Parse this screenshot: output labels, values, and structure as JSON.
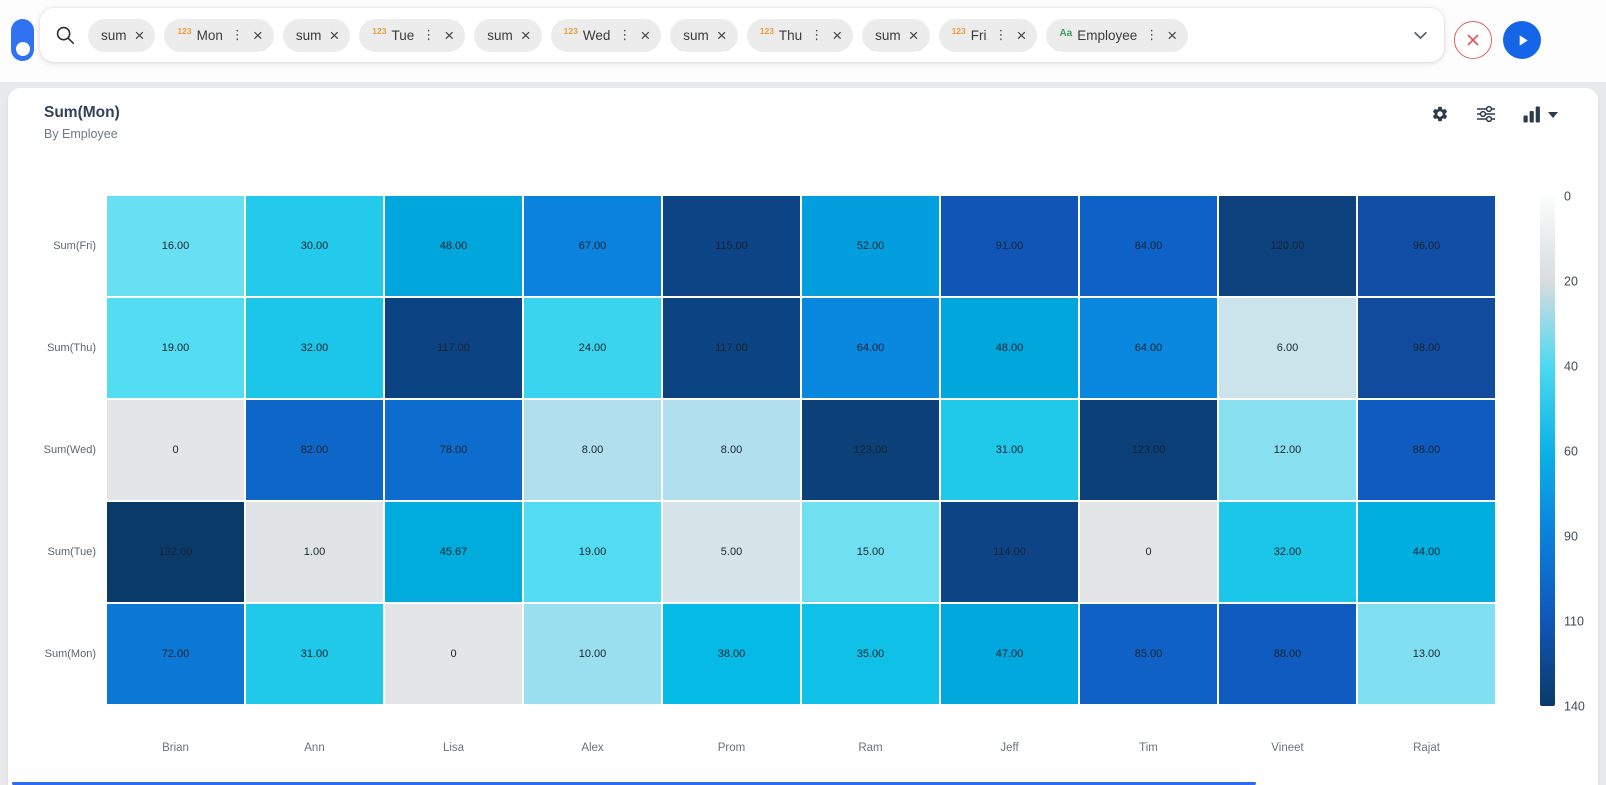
{
  "search": {
    "tokens": [
      {
        "label": "sum",
        "prefix": null,
        "menu": false
      },
      {
        "label": "Mon",
        "prefix": "123",
        "menu": true
      },
      {
        "label": "sum",
        "prefix": null,
        "menu": false
      },
      {
        "label": "Tue",
        "prefix": "123",
        "menu": true
      },
      {
        "label": "sum",
        "prefix": null,
        "menu": false
      },
      {
        "label": "Wed",
        "prefix": "123",
        "menu": true
      },
      {
        "label": "sum",
        "prefix": null,
        "menu": false
      },
      {
        "label": "Thu",
        "prefix": "123",
        "menu": true
      },
      {
        "label": "sum",
        "prefix": null,
        "menu": false
      },
      {
        "label": "Fri",
        "prefix": "123",
        "menu": true
      },
      {
        "label": "Employee",
        "prefix": "Aa",
        "menu": true
      }
    ],
    "prefix_colors": {
      "123": "#ef9d3e",
      "Aa": "#3f9e63"
    },
    "kebab_glyph": "⋮",
    "close_glyph": "×"
  },
  "header": {
    "title": "Sum(Mon)",
    "subtitle": "By Employee"
  },
  "chart_data": {
    "type": "heatmap",
    "title": "Sum(Mon)",
    "subtitle": "By Employee",
    "x_categories": [
      "Brian",
      "Ann",
      "Lisa",
      "Alex",
      "Prom",
      "Ram",
      "Jeff",
      "Tim",
      "Vineet",
      "Rajat"
    ],
    "y_categories": [
      "Sum(Fri)",
      "Sum(Thu)",
      "Sum(Wed)",
      "Sum(Tue)",
      "Sum(Mon)"
    ],
    "values": [
      [
        16,
        30,
        48,
        67,
        115,
        52,
        91,
        84,
        120,
        96
      ],
      [
        19,
        32,
        117,
        24,
        117,
        64,
        48,
        64,
        6,
        98
      ],
      [
        0,
        82,
        78,
        8,
        8,
        123,
        31,
        123,
        12,
        88
      ],
      [
        132,
        1,
        45.67,
        19,
        5,
        15,
        114,
        0,
        32,
        44
      ],
      [
        72,
        31,
        0,
        10,
        38,
        35,
        47,
        85,
        88,
        13
      ]
    ],
    "legend_ticks": [
      0,
      20,
      40,
      60,
      90,
      110,
      140
    ],
    "legend_position": "right",
    "legend_gradient": [
      [
        "0%",
        "#fbfcfc"
      ],
      [
        "16.7%",
        "#d8dcde"
      ],
      [
        "33.3%",
        "#4dd9f0"
      ],
      [
        "50%",
        "#0cb2e6"
      ],
      [
        "66.7%",
        "#0b80dc"
      ],
      [
        "83.3%",
        "#1156b8"
      ],
      [
        "100%",
        "#0a3a68"
      ]
    ],
    "cell_color_stops": [
      [
        0,
        "#e3e5e6"
      ],
      [
        1,
        "#dfe3e5"
      ],
      [
        5,
        "#d7e5ea"
      ],
      [
        8,
        "#b2dfed"
      ],
      [
        11,
        "#8edff0"
      ],
      [
        14,
        "#79e0f1"
      ],
      [
        17,
        "#5fdff2"
      ],
      [
        20,
        "#4cdcf2"
      ],
      [
        24,
        "#3bd4ef"
      ],
      [
        28,
        "#2bcdec"
      ],
      [
        32,
        "#1cc6e9"
      ],
      [
        36,
        "#0abfe6"
      ],
      [
        40,
        "#00b5e2"
      ],
      [
        46,
        "#00aadd"
      ],
      [
        50,
        "#02a2dc"
      ],
      [
        56,
        "#0695e0"
      ],
      [
        62,
        "#0a8ce2"
      ],
      [
        68,
        "#0b80dc"
      ],
      [
        74,
        "#0c74d3"
      ],
      [
        80,
        "#0d69cc"
      ],
      [
        86,
        "#0f5fc4"
      ],
      [
        92,
        "#1154b4"
      ],
      [
        98,
        "#114b9e"
      ],
      [
        105,
        "#0e4892"
      ],
      [
        112,
        "#0c4589"
      ],
      [
        118,
        "#0c4280"
      ],
      [
        124,
        "#0b3f76"
      ],
      [
        130,
        "#0a3b6b"
      ],
      [
        136,
        "#093763"
      ],
      [
        140,
        "#09345d"
      ]
    ]
  }
}
